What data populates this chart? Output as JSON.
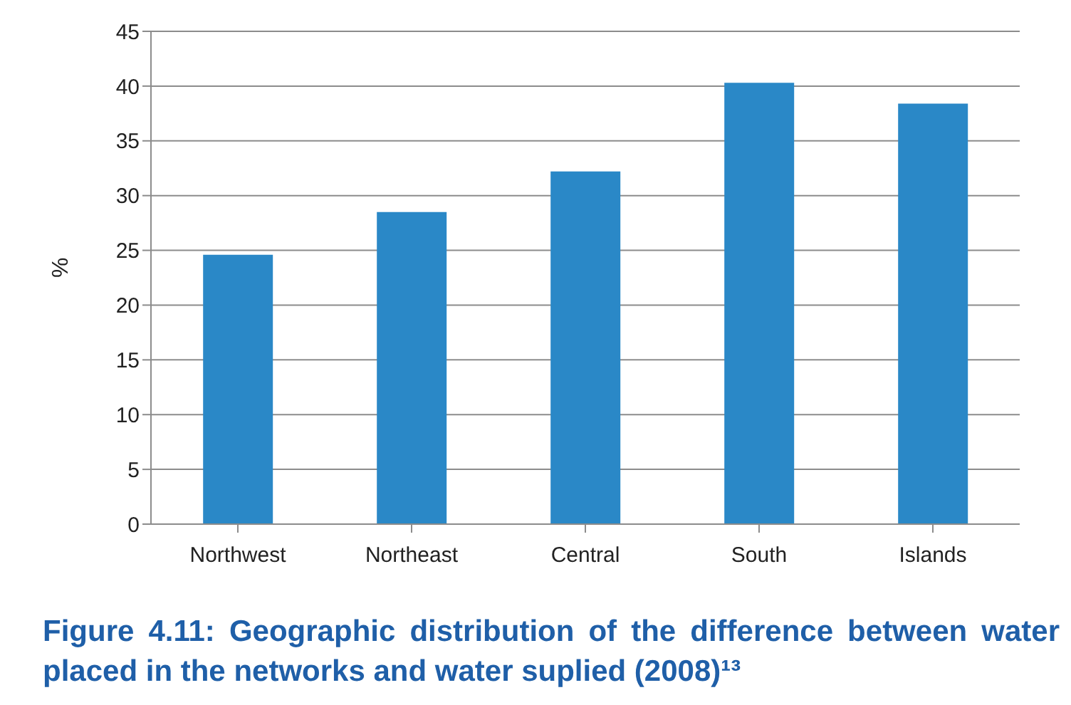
{
  "chart_data": {
    "type": "bar",
    "title": "Figure 4.11: Geographic distribution of the difference between water placed in the networks and water suplied (2008)¹³",
    "ylabel": "%",
    "categories": [
      "Northwest",
      "Northeast",
      "Central",
      "South",
      "Islands"
    ],
    "values": [
      24.6,
      28.5,
      32.2,
      40.3,
      38.4
    ],
    "color": "#2a88c7",
    "ylim": [
      0,
      45
    ],
    "yticks": [
      0,
      5,
      10,
      15,
      20,
      25,
      30,
      35,
      40,
      45
    ],
    "grid": "y"
  }
}
